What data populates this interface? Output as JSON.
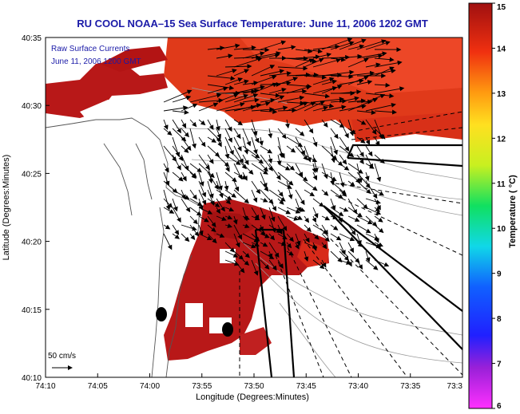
{
  "title": "RU COOL  NOAA–15  Sea Surface Temperature:  June 11, 2006 1202 GMT",
  "annotation": {
    "line1": "Raw Surface Currents",
    "line2": "June 11, 2006 1200 GMT"
  },
  "scale_label": "50 cm/s",
  "axes": {
    "xlabel": "Longitude (Degrees:Minutes)",
    "ylabel": "Latitude (Degrees:Minutes)",
    "xticks": [
      "74:10",
      "74:05",
      "74:00",
      "73:55",
      "73:50",
      "73:45",
      "73:40",
      "73:35",
      "73:3"
    ],
    "yticks": [
      "40:35",
      "40:30",
      "40:25",
      "40:20",
      "40:15",
      "40:10"
    ]
  },
  "colorbar": {
    "label": "Temperature ( °C)",
    "min": 6,
    "max": 15,
    "ticks": [
      "15",
      "14",
      "13",
      "12",
      "11",
      "10",
      "9",
      "8",
      "7",
      "6"
    ]
  },
  "colors": {
    "title": "#1a1aa8",
    "annotation": "#1a1aa8",
    "sst_hot": "#e02a12",
    "sst_warm": "#c41818",
    "sst_cool": "#a81010",
    "land": "#ffffff"
  }
}
